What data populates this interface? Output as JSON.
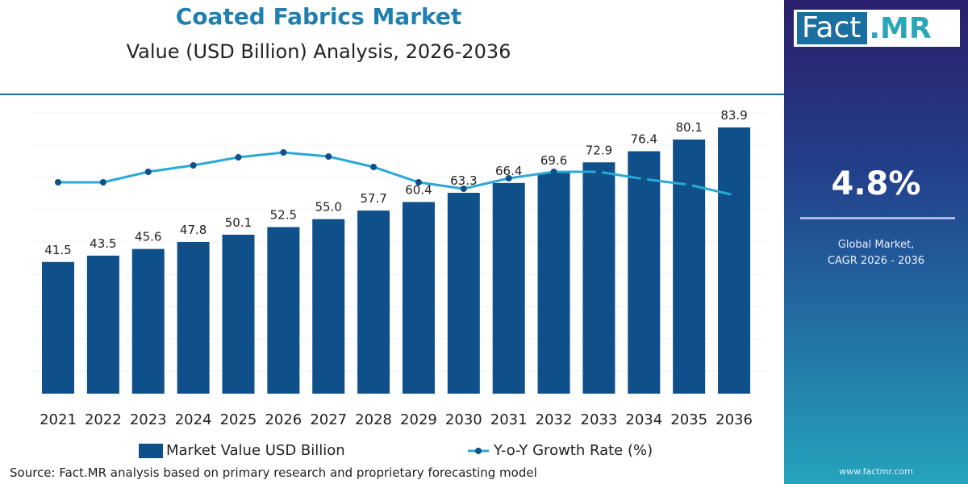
{
  "header": {
    "title": "Coated Fabrics Market",
    "subtitle": "Value (USD Billion) Analysis, 2026-2036"
  },
  "chart_data": {
    "type": "bar",
    "title": "Coated Fabrics Market",
    "subtitle": "Value (USD Billion) Analysis, 2026-2036",
    "categories": [
      "2021",
      "2022",
      "2023",
      "2024",
      "2025",
      "2026",
      "2027",
      "2028",
      "2029",
      "2030",
      "2031",
      "2032",
      "2033",
      "2034",
      "2035",
      "2036"
    ],
    "series": [
      {
        "name": "Market Value USD Billion",
        "type": "bar",
        "color": "#0f4f8a",
        "values": [
          41.5,
          43.5,
          45.6,
          47.8,
          50.1,
          52.5,
          55.0,
          57.7,
          60.4,
          63.3,
          66.4,
          69.6,
          72.9,
          76.4,
          80.1,
          83.9
        ]
      },
      {
        "name": "Y-o-Y Growth Rate (%)",
        "type": "line",
        "color": "#2aa8d8",
        "marker_color": "#0f4f8a",
        "values": [
          4.8,
          4.8,
          5.06,
          5.22,
          5.42,
          5.54,
          5.44,
          5.18,
          4.8,
          4.64,
          4.9,
          5.06,
          5.06,
          4.88,
          4.74,
          4.48
        ]
      }
    ],
    "ylim": [
      0,
      90
    ],
    "grid": true,
    "legend": "bottom"
  },
  "source": "Source: Fact.MR analysis based on primary research and proprietary forecasting model",
  "sidebar": {
    "logo_left": "Fact",
    "logo_right": ".MR",
    "cagr": "4.8%",
    "cagr_label_1": "Global Market,",
    "cagr_label_2": "CAGR 2026 - 2036",
    "website": "www.factmr.com"
  }
}
